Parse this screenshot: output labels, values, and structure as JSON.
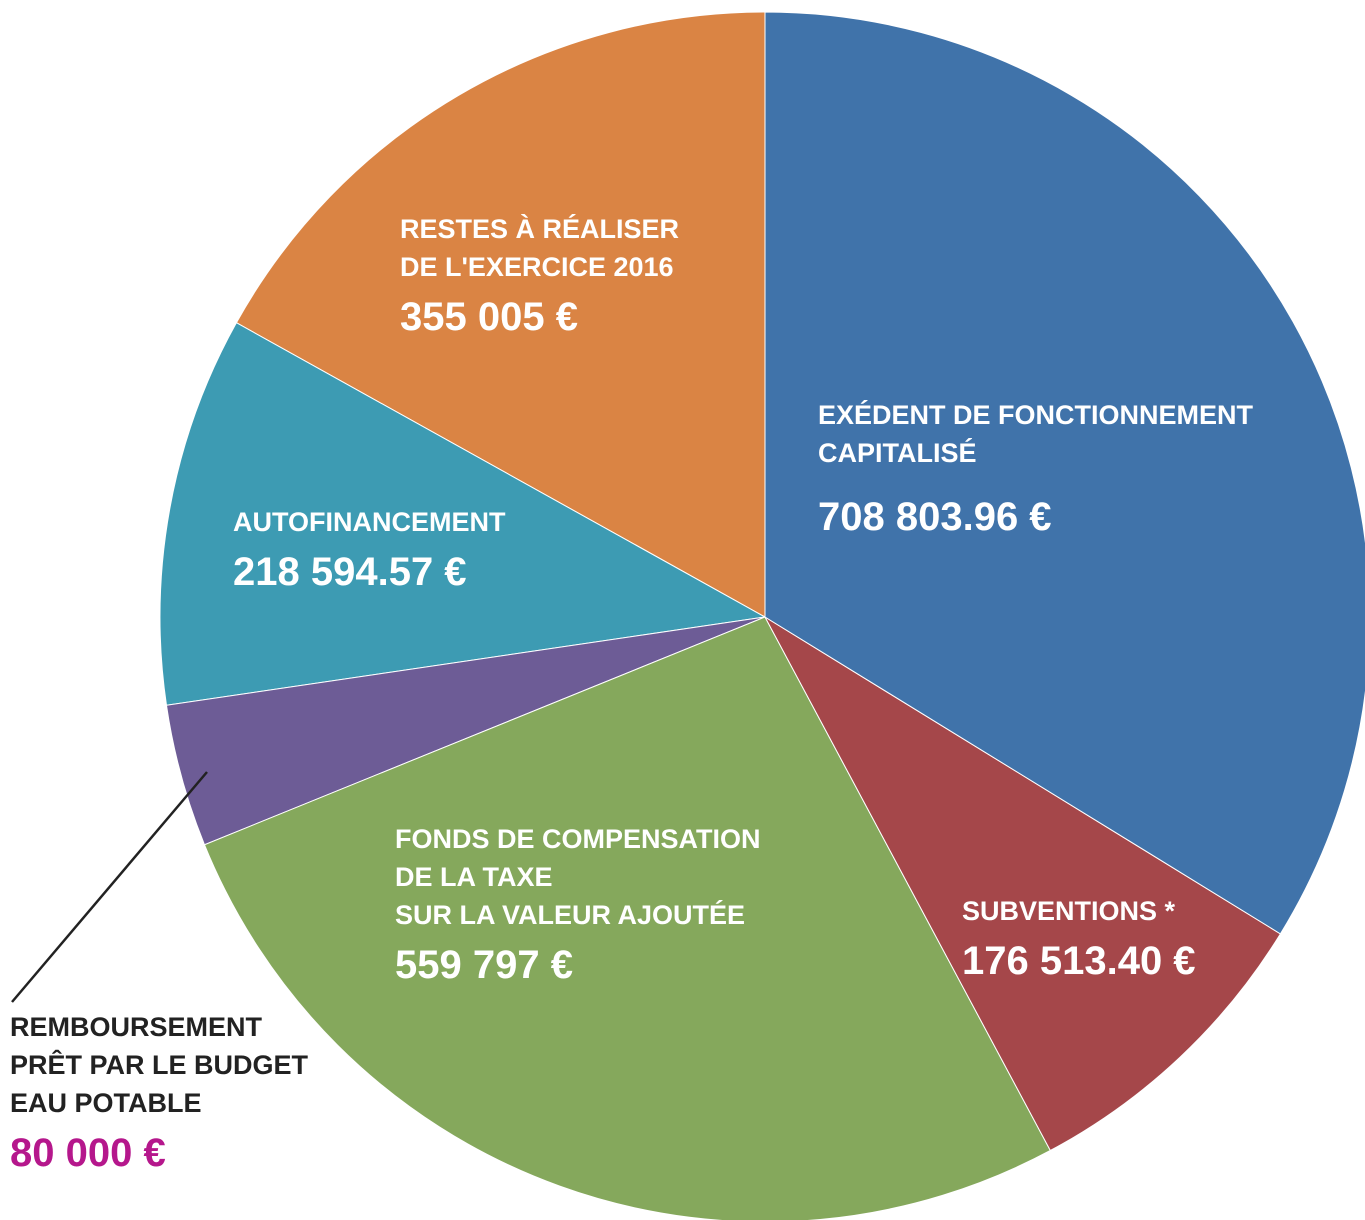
{
  "chart_data": {
    "type": "pie",
    "categories": [
      "EXÉDENT DE FONCTIONNEMENT\nCAPITALISÉ",
      "SUBVENTIONS *",
      "FONDS DE COMPENSATION\nDE LA TAXE\nSUR LA VALEUR AJOUTÉE",
      "REMBOURSEMENT\nPRÊT PAR LE BUDGET\nEAU POTABLE",
      "AUTOFINANCEMENT",
      "RESTES À RÉALISER\nDE L'EXERCICE 2016"
    ],
    "values": [
      708803.96,
      176513.4,
      559797,
      80000,
      218594.57,
      355005
    ],
    "value_labels": [
      "708 803.96 €",
      "176 513.40 €",
      "559 797 €",
      "80 000 €",
      "218 594.57 €",
      "355 005 €"
    ],
    "colors": [
      "#4073aa",
      "#a5474a",
      "#85a85c",
      "#6d5c96",
      "#3d9bb3",
      "#da8444"
    ]
  }
}
